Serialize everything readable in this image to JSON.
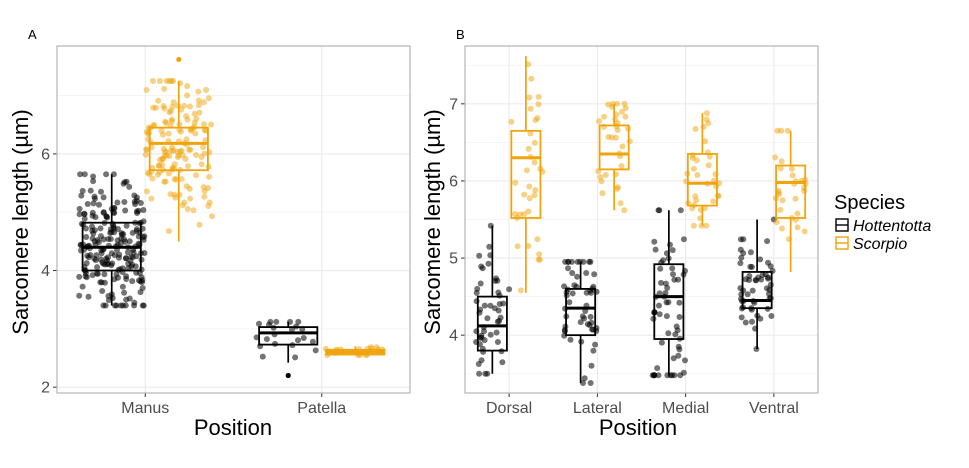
{
  "colors": {
    "Hottentotta": "#000000",
    "Scorpio": "#f0a30a",
    "panel_border": "#b3b3b3",
    "grid": "#ebebeb"
  },
  "legend": {
    "title": "Species",
    "items": [
      "Hottentotta",
      "Scorpio"
    ]
  },
  "chart_data": [
    {
      "panel": "A",
      "type": "boxplot",
      "xlabel": "Position",
      "ylabel": "Sarcomere length (µm)",
      "categories": [
        "Manus",
        "Patella"
      ],
      "ylim": [
        1.9,
        7.85
      ],
      "yticks": [
        2,
        4,
        6
      ],
      "grid": true,
      "series": [
        {
          "name": "Hottentotta",
          "boxes": [
            {
              "category": "Manus",
              "whisker_low": 3.4,
              "q1": 4.0,
              "median": 4.4,
              "q3": 4.82,
              "whisker_high": 5.65,
              "n_points": 220
            },
            {
              "category": "Patella",
              "whisker_low": 2.42,
              "q1": 2.73,
              "median": 2.93,
              "q3": 3.03,
              "whisker_high": 3.12,
              "n_points": 22,
              "outliers": [
                2.2
              ]
            }
          ]
        },
        {
          "name": "Scorpio",
          "boxes": [
            {
              "category": "Manus",
              "whisker_low": 4.5,
              "q1": 5.72,
              "median": 6.18,
              "q3": 6.45,
              "whisker_high": 7.25,
              "n_points": 150,
              "outliers": [
                7.62
              ]
            },
            {
              "category": "Patella",
              "whisker_low": 2.55,
              "q1": 2.56,
              "median": 2.6,
              "q3": 2.64,
              "whisker_high": 2.7,
              "n_points": 20
            }
          ]
        }
      ]
    },
    {
      "panel": "B",
      "type": "boxplot",
      "xlabel": "Position",
      "ylabel": "Sarcomere length (µm)",
      "categories": [
        "Dorsal",
        "Lateral",
        "Medial",
        "Ventral"
      ],
      "ylim": [
        3.25,
        7.75
      ],
      "yticks": [
        4,
        5,
        6,
        7
      ],
      "grid": true,
      "series": [
        {
          "name": "Hottentotta",
          "boxes": [
            {
              "category": "Dorsal",
              "whisker_low": 3.5,
              "q1": 3.8,
              "median": 4.12,
              "q3": 4.5,
              "whisker_high": 5.42,
              "n_points": 50
            },
            {
              "category": "Lateral",
              "whisker_low": 3.38,
              "q1": 4.0,
              "median": 4.35,
              "q3": 4.6,
              "whisker_high": 4.95,
              "n_points": 55
            },
            {
              "category": "Medial",
              "whisker_low": 3.48,
              "q1": 3.95,
              "median": 4.5,
              "q3": 4.92,
              "whisker_high": 5.62,
              "n_points": 60
            },
            {
              "category": "Ventral",
              "whisker_low": 3.82,
              "q1": 4.35,
              "median": 4.45,
              "q3": 4.82,
              "whisker_high": 5.5,
              "n_points": 55
            }
          ]
        },
        {
          "name": "Scorpio",
          "boxes": [
            {
              "category": "Dorsal",
              "whisker_low": 4.55,
              "q1": 5.52,
              "median": 6.3,
              "q3": 6.65,
              "whisker_high": 7.62,
              "n_points": 35
            },
            {
              "category": "Lateral",
              "whisker_low": 5.62,
              "q1": 6.15,
              "median": 6.35,
              "q3": 6.72,
              "whisker_high": 7.0,
              "n_points": 35
            },
            {
              "category": "Medial",
              "whisker_low": 5.42,
              "q1": 5.68,
              "median": 5.97,
              "q3": 6.35,
              "whisker_high": 6.88,
              "n_points": 35
            },
            {
              "category": "Ventral",
              "whisker_low": 4.82,
              "q1": 5.52,
              "median": 5.98,
              "q3": 6.2,
              "whisker_high": 6.65,
              "n_points": 30
            }
          ]
        }
      ]
    }
  ]
}
